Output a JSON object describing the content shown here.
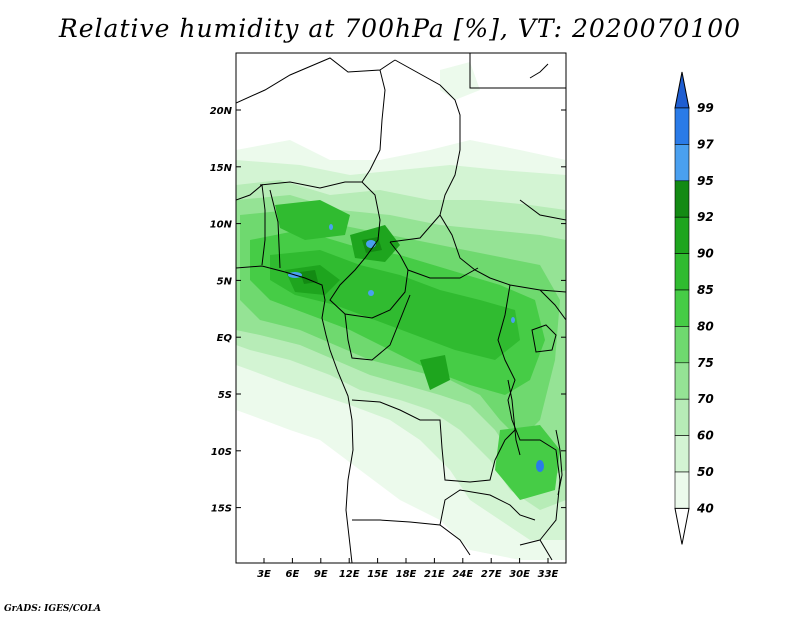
{
  "title": "Relative humidity at 700hPa [%], VT: 2020070100",
  "credit": "GrADS: IGES/COLA",
  "map": {
    "lat_labels": [
      "20N",
      "15N",
      "10N",
      "5N",
      "EQ",
      "5S",
      "10S",
      "15S"
    ],
    "lon_labels": [
      "3E",
      "6E",
      "9E",
      "12E",
      "15E",
      "18E",
      "21E",
      "24E",
      "27E",
      "30E",
      "33E"
    ],
    "lon_range": [
      0,
      35
    ],
    "lat_range": [
      -20,
      25
    ]
  },
  "colorbar": {
    "levels": [
      "99",
      "97",
      "95",
      "92",
      "90",
      "85",
      "80",
      "75",
      "70",
      "60",
      "50",
      "40"
    ],
    "colors": [
      "#1f5ed1",
      "#2a7be8",
      "#4aa0f0",
      "#138a13",
      "#1ea51e",
      "#30bb30",
      "#46cc46",
      "#6fd96f",
      "#95e395",
      "#b7ecb7",
      "#d3f4d3",
      "#ecfaec",
      "#ffffff"
    ]
  }
}
